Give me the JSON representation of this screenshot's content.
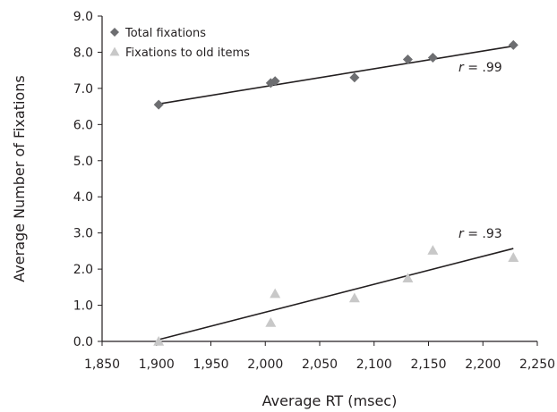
{
  "chart_data": {
    "type": "scatter",
    "title": "",
    "xlabel": "Average RT (msec)",
    "ylabel": "Average Number of Fixations",
    "xlim": [
      1850,
      2250
    ],
    "ylim": [
      0,
      9
    ],
    "x_ticks": [
      "1,850",
      "1,900",
      "1,950",
      "2,000",
      "2,050",
      "2,100",
      "2,150",
      "2,200",
      "2,250"
    ],
    "y_ticks": [
      "0.0",
      "1.0",
      "2.0",
      "3.0",
      "4.0",
      "5.0",
      "6.0",
      "7.0",
      "8.0",
      "9.0"
    ],
    "grid": false,
    "legend_position": "top-left",
    "series": [
      {
        "name": "Total fixations",
        "marker": "diamond",
        "color": "#6d6e71",
        "points": [
          {
            "x": 1902,
            "y": 6.55
          },
          {
            "x": 2005,
            "y": 7.15
          },
          {
            "x": 2009,
            "y": 7.2
          },
          {
            "x": 2082,
            "y": 7.3
          },
          {
            "x": 2131,
            "y": 7.8
          },
          {
            "x": 2154,
            "y": 7.85
          },
          {
            "x": 2228,
            "y": 8.2
          }
        ],
        "trendline": {
          "x": [
            1902,
            2228
          ],
          "y": [
            6.57,
            8.17
          ]
        },
        "r_label": "r = .99"
      },
      {
        "name": "Fixations to old items",
        "marker": "triangle",
        "color": "#c8c8c8",
        "points": [
          {
            "x": 1902,
            "y": 0.0
          },
          {
            "x": 2005,
            "y": 0.52
          },
          {
            "x": 2009,
            "y": 1.32
          },
          {
            "x": 2082,
            "y": 1.2
          },
          {
            "x": 2131,
            "y": 1.75
          },
          {
            "x": 2154,
            "y": 2.52
          },
          {
            "x": 2228,
            "y": 2.32
          }
        ],
        "trendline": {
          "x": [
            1902,
            2228
          ],
          "y": [
            0.05,
            2.57
          ]
        },
        "r_label": "r = .93"
      }
    ]
  }
}
